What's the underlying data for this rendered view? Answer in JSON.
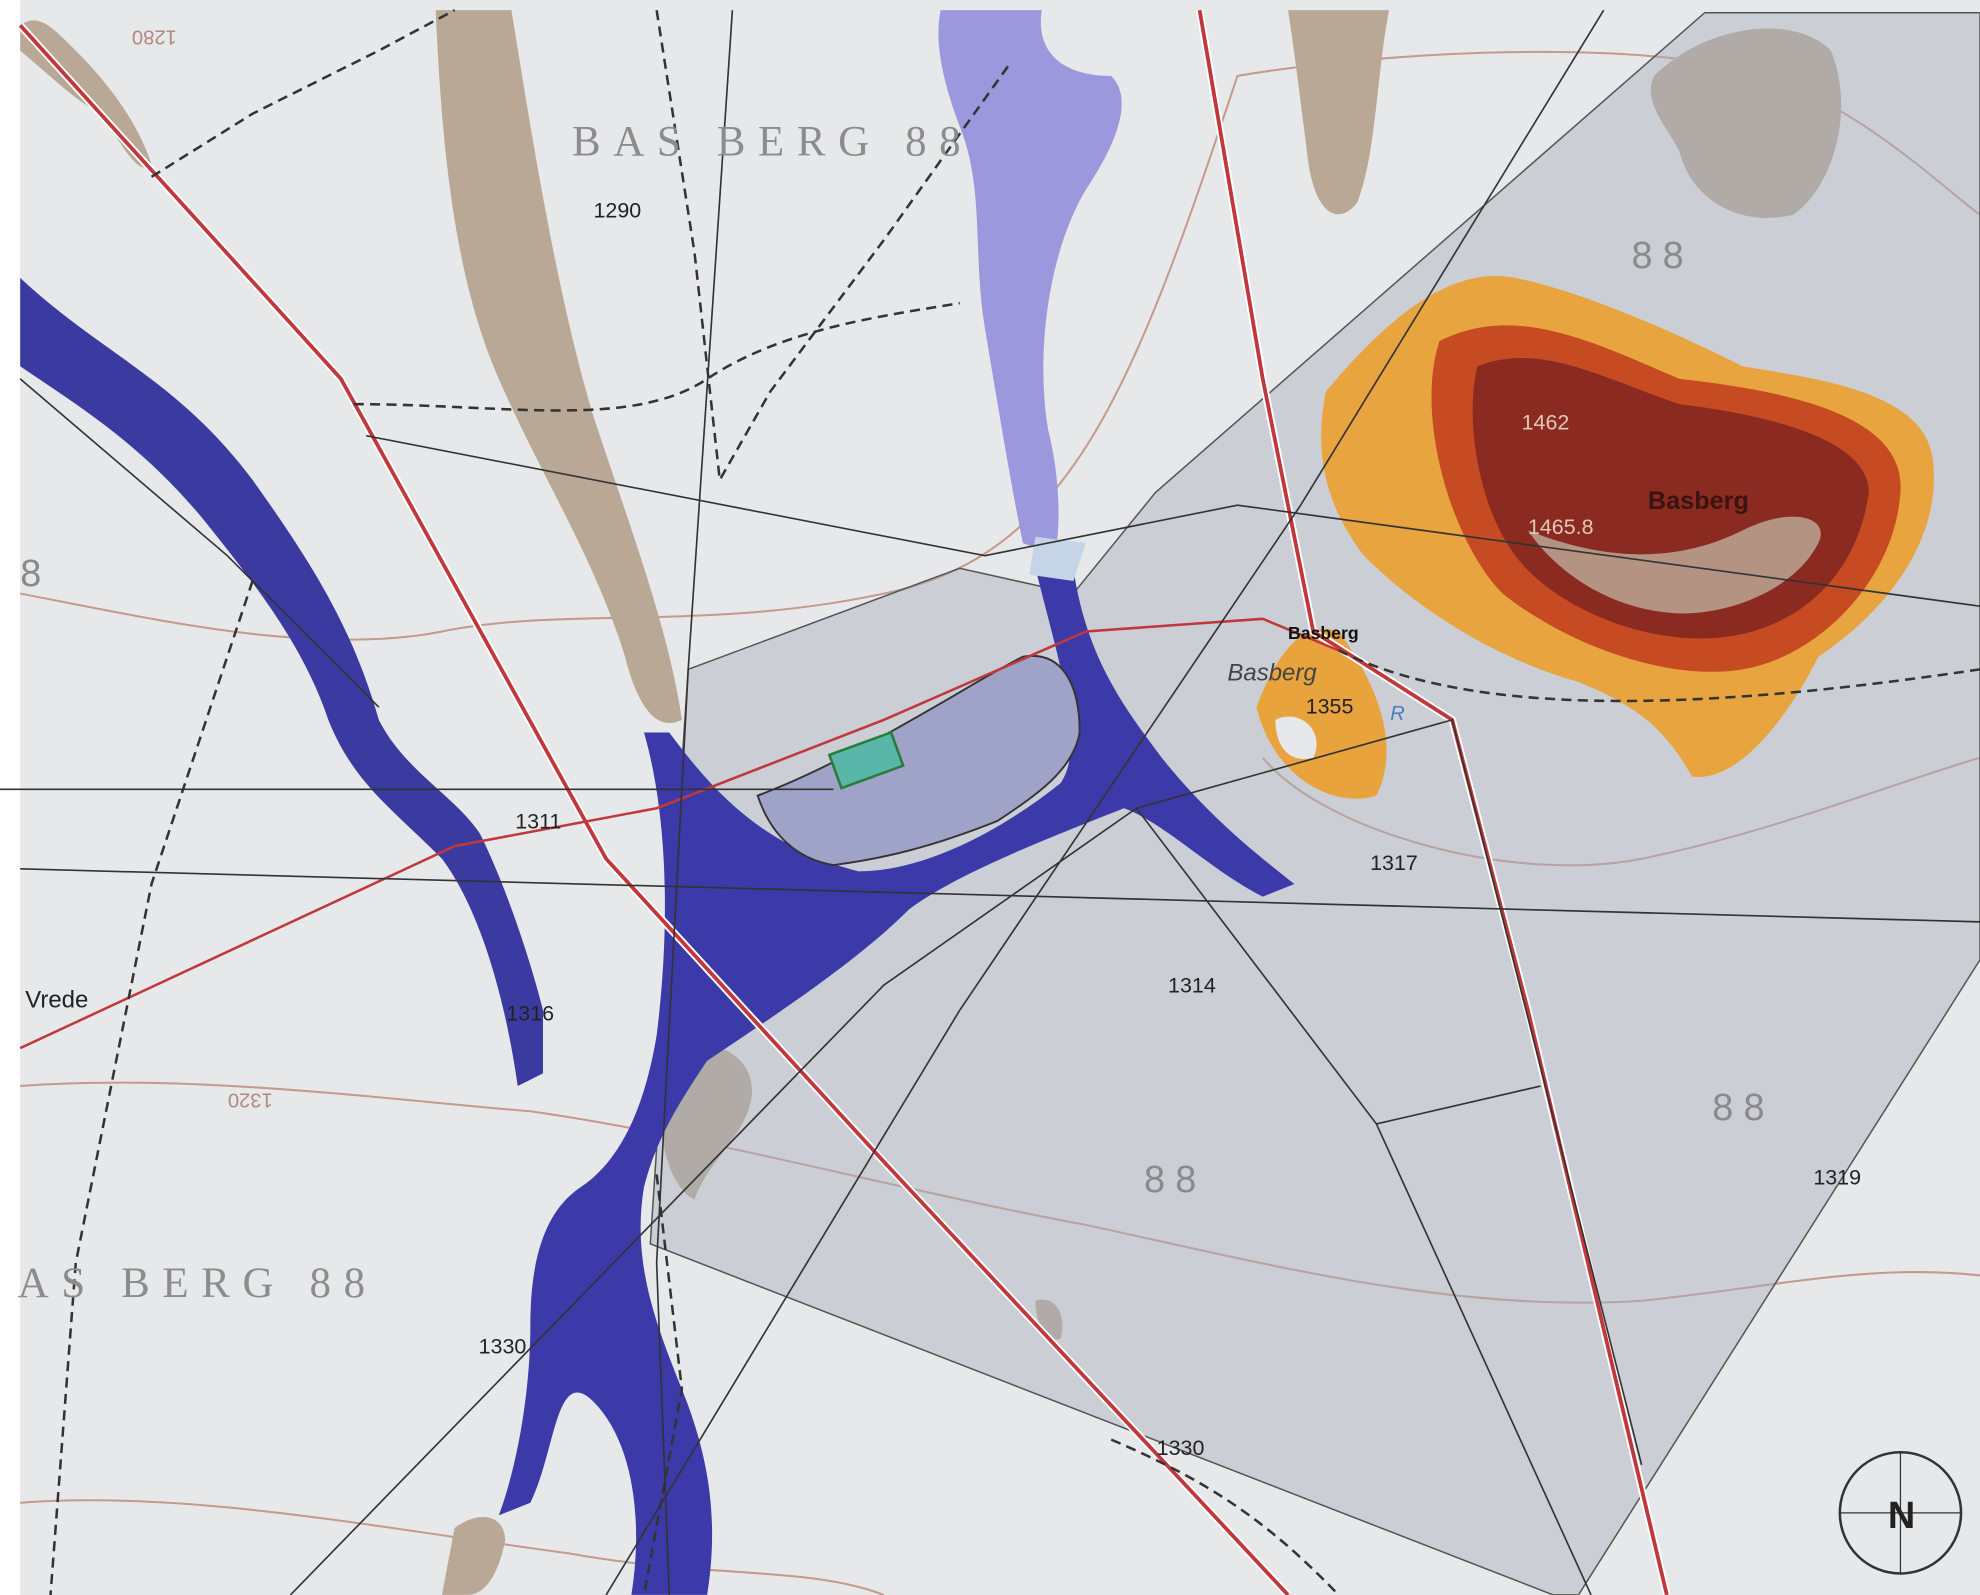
{
  "map": {
    "labels": [
      "BAS BERG 88",
      "1290",
      "88",
      "1462",
      "Basberg",
      "1465.8",
      "Basberg",
      "Basberg",
      "1355",
      "R",
      "1317",
      "1311",
      "1314",
      "1316",
      "Vrede",
      "1320",
      "88",
      "88",
      "1319",
      "AS BERG 88",
      "1330",
      "1330",
      "8",
      "1280",
      "N"
    ]
  }
}
